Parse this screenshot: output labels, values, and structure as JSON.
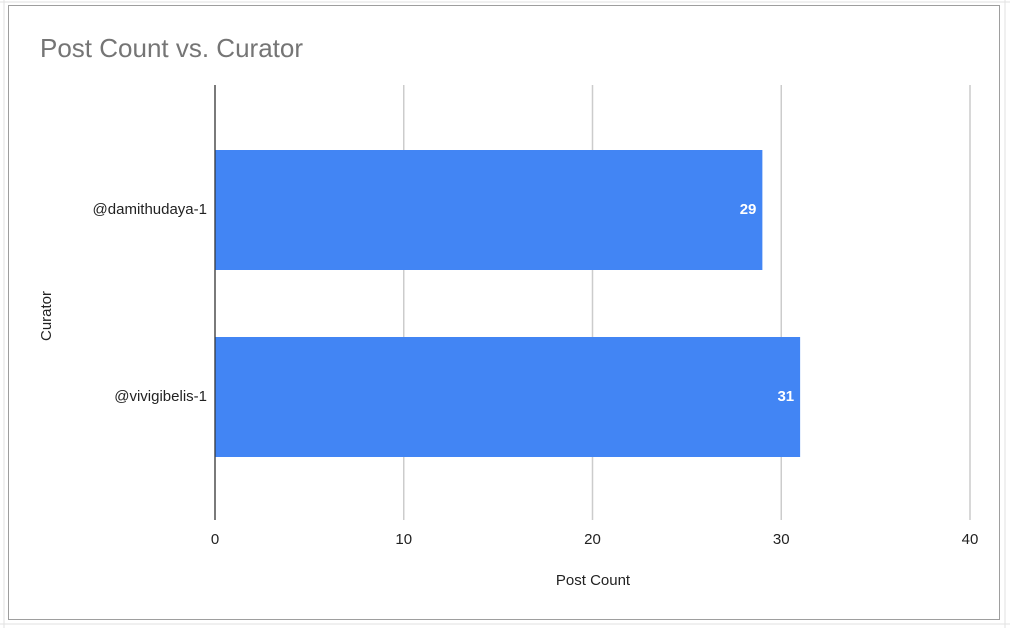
{
  "chart_data": {
    "type": "bar",
    "orientation": "horizontal",
    "title": "Post Count vs. Curator",
    "x_label": "Post Count",
    "y_label": "Curator",
    "categories": [
      "@damithudaya-1",
      "@vivigibelis-1"
    ],
    "values": [
      29,
      31
    ],
    "color": "#4285f4",
    "xlim": [
      0,
      40
    ],
    "xticks": [
      0,
      10,
      20,
      30,
      40
    ],
    "grid": true,
    "data_labels": true
  }
}
